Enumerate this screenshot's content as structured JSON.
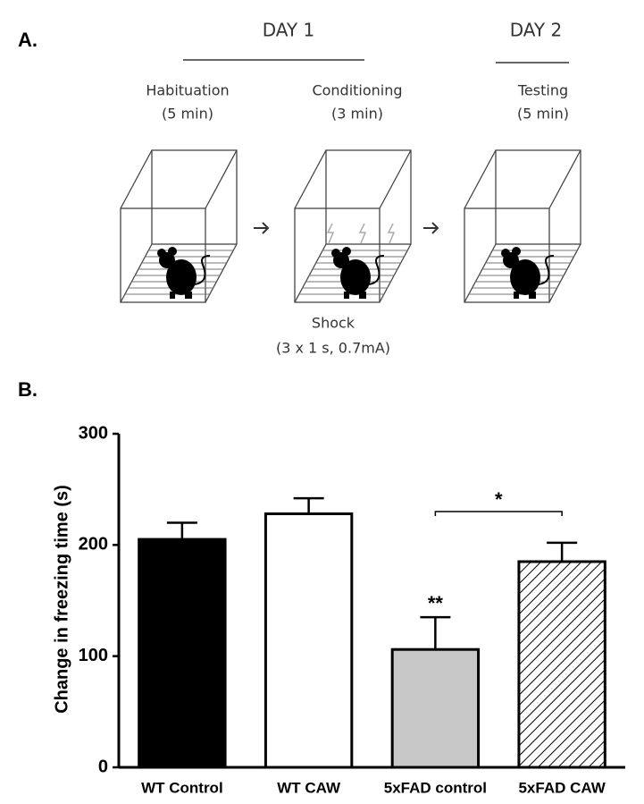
{
  "panel_a": {
    "label": "A.",
    "day1": "DAY 1",
    "day2": "DAY 2",
    "stages": [
      {
        "name": "Habituation",
        "duration": "(5 min)"
      },
      {
        "name": "Conditioning",
        "duration": "(3 min)"
      },
      {
        "name": "Testing",
        "duration": "(5 min)"
      }
    ],
    "shock": "Shock",
    "shock_detail": "(3 x 1 s, 0.7mA)"
  },
  "chart_data": {
    "type": "bar",
    "panel_label": "B.",
    "y_label": "Change in freezing time (s)",
    "categories": [
      "WT Control",
      "WT CAW",
      "5xFAD control",
      "5xFAD CAW"
    ],
    "values": [
      205,
      228,
      106,
      185
    ],
    "errors": [
      15,
      14,
      29,
      17
    ],
    "colors": [
      "#000000",
      "#ffffff",
      "#c8c8c8",
      "#ffffff"
    ],
    "hatch": [
      false,
      false,
      false,
      true
    ],
    "sig_markers": [
      null,
      null,
      "**",
      null
    ],
    "bracket": {
      "label": "*",
      "categories": [
        "5xFAD control",
        "5xFAD CAW"
      ],
      "y": 230
    },
    "ylim": [
      0,
      300
    ],
    "yticks": [
      0,
      100,
      200,
      300
    ],
    "grid": false
  }
}
